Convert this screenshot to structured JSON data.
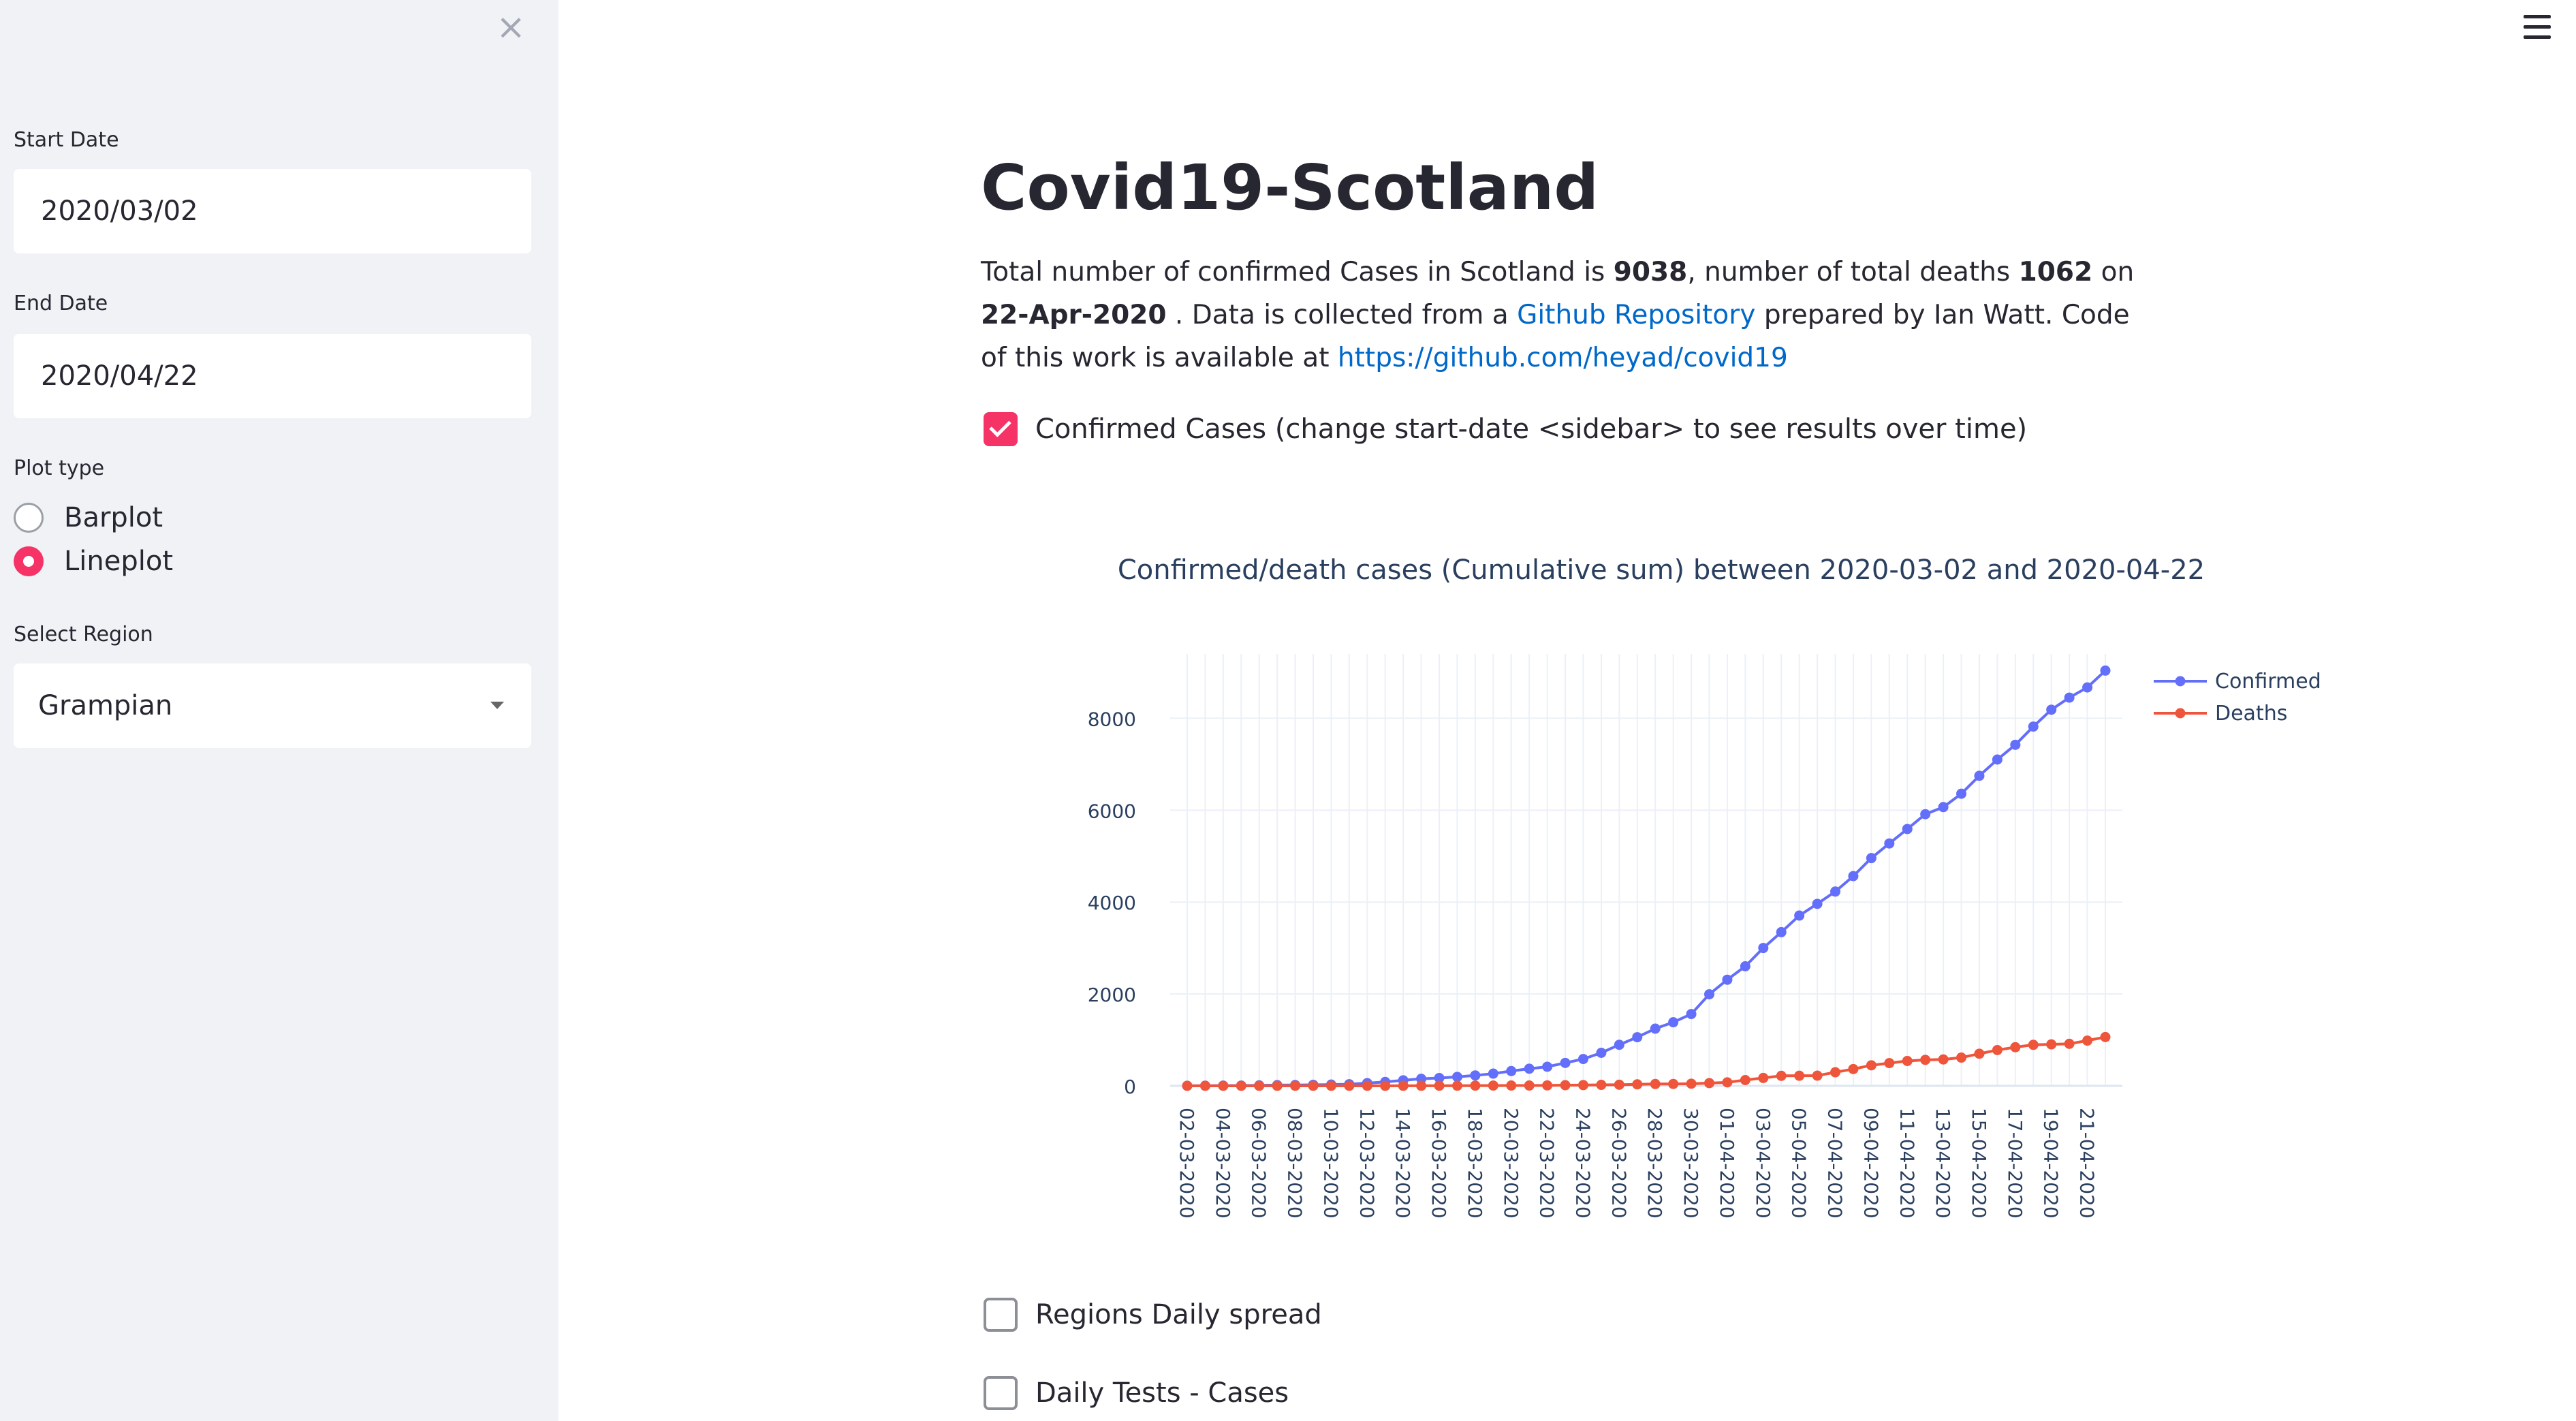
{
  "sidebar": {
    "close_icon": "×",
    "start_date": {
      "label": "Start Date",
      "value": "2020/03/02"
    },
    "end_date": {
      "label": "End Date",
      "value": "2020/04/22"
    },
    "plot_type": {
      "label": "Plot type",
      "options": [
        {
          "label": "Barplot",
          "selected": false
        },
        {
          "label": "Lineplot",
          "selected": true
        }
      ]
    },
    "region": {
      "label": "Select Region",
      "value": "Grampian"
    }
  },
  "main": {
    "title": "Covid19-Scotland",
    "desc": {
      "p1": "Total number of confirmed Cases in Scotland is ",
      "cases": "9038",
      "p2": ", number of total deaths ",
      "deaths": "1062",
      "p3": " on ",
      "date": "22-Apr-2020",
      "p4": " . Data is collected from a ",
      "link1": "Github Repository",
      "p5": " prepared by Ian Watt. Code of this work is available at ",
      "link2": "https://github.com/heyad/covid19"
    },
    "checkboxes": {
      "confirmed": {
        "label": "Confirmed Cases (change start-date <sidebar> to see results over time)",
        "checked": true
      },
      "regions": {
        "label": "Regions Daily spread",
        "checked": false
      },
      "tests": {
        "label": "Daily Tests - Cases",
        "checked": false
      }
    }
  },
  "chart_data": {
    "type": "line",
    "title": "Confirmed/death cases (Cumulative sum) between 2020-03-02 and 2020-04-22",
    "xlabel": "",
    "ylabel": "",
    "ylim": [
      0,
      9400
    ],
    "yticks": [
      0,
      2000,
      4000,
      6000,
      8000
    ],
    "grid": true,
    "legend_position": "top-right",
    "x": [
      "02-03-2020",
      "03-03-2020",
      "04-03-2020",
      "05-03-2020",
      "06-03-2020",
      "07-03-2020",
      "08-03-2020",
      "09-03-2020",
      "10-03-2020",
      "11-03-2020",
      "12-03-2020",
      "13-03-2020",
      "14-03-2020",
      "15-03-2020",
      "16-03-2020",
      "17-03-2020",
      "18-03-2020",
      "19-03-2020",
      "20-03-2020",
      "21-03-2020",
      "22-03-2020",
      "23-03-2020",
      "24-03-2020",
      "25-03-2020",
      "26-03-2020",
      "27-03-2020",
      "28-03-2020",
      "29-03-2020",
      "30-03-2020",
      "31-03-2020",
      "01-04-2020",
      "02-04-2020",
      "03-04-2020",
      "04-04-2020",
      "05-04-2020",
      "06-04-2020",
      "07-04-2020",
      "08-04-2020",
      "09-04-2020",
      "10-04-2020",
      "11-04-2020",
      "12-04-2020",
      "13-04-2020",
      "14-04-2020",
      "15-04-2020",
      "16-04-2020",
      "17-04-2020",
      "18-04-2020",
      "19-04-2020",
      "20-04-2020",
      "21-04-2020",
      "22-04-2020"
    ],
    "x_tick_labels": [
      "02-03-2020",
      "04-03-2020",
      "06-03-2020",
      "08-03-2020",
      "10-03-2020",
      "12-03-2020",
      "14-03-2020",
      "16-03-2020",
      "18-03-2020",
      "20-03-2020",
      "22-03-2020",
      "24-03-2020",
      "26-03-2020",
      "28-03-2020",
      "30-03-2020",
      "01-04-2020",
      "03-04-2020",
      "05-04-2020",
      "07-04-2020",
      "09-04-2020",
      "11-04-2020",
      "13-04-2020",
      "15-04-2020",
      "17-04-2020",
      "19-04-2020",
      "21-04-2020"
    ],
    "series": [
      {
        "name": "Confirmed",
        "color": "#636efa",
        "values": [
          1,
          3,
          5,
          6,
          11,
          16,
          18,
          23,
          27,
          36,
          60,
          85,
          121,
          153,
          171,
          195,
          227,
          266,
          322,
          373,
          416,
          499,
          584,
          719,
          894,
          1059,
          1245,
          1384,
          1563,
          1993,
          2310,
          2602,
          3001,
          3345,
          3706,
          3961,
          4229,
          4565,
          4957,
          5275,
          5590,
          5912,
          6067,
          6358,
          6748,
          7102,
          7423,
          7820,
          8187,
          8450,
          8672,
          9038
        ]
      },
      {
        "name": "Deaths",
        "color": "#ef553b",
        "values": [
          0,
          0,
          0,
          0,
          0,
          0,
          0,
          0,
          0,
          0,
          0,
          0,
          1,
          1,
          2,
          3,
          5,
          6,
          7,
          7,
          10,
          14,
          16,
          22,
          25,
          33,
          40,
          41,
          47,
          60,
          76,
          126,
          172,
          218,
          220,
          222,
          296,
          366,
          447,
          495,
          542,
          566,
          575,
          615,
          699,
          779,
          841,
          893,
          903,
          915,
          985,
          1062
        ]
      }
    ]
  }
}
